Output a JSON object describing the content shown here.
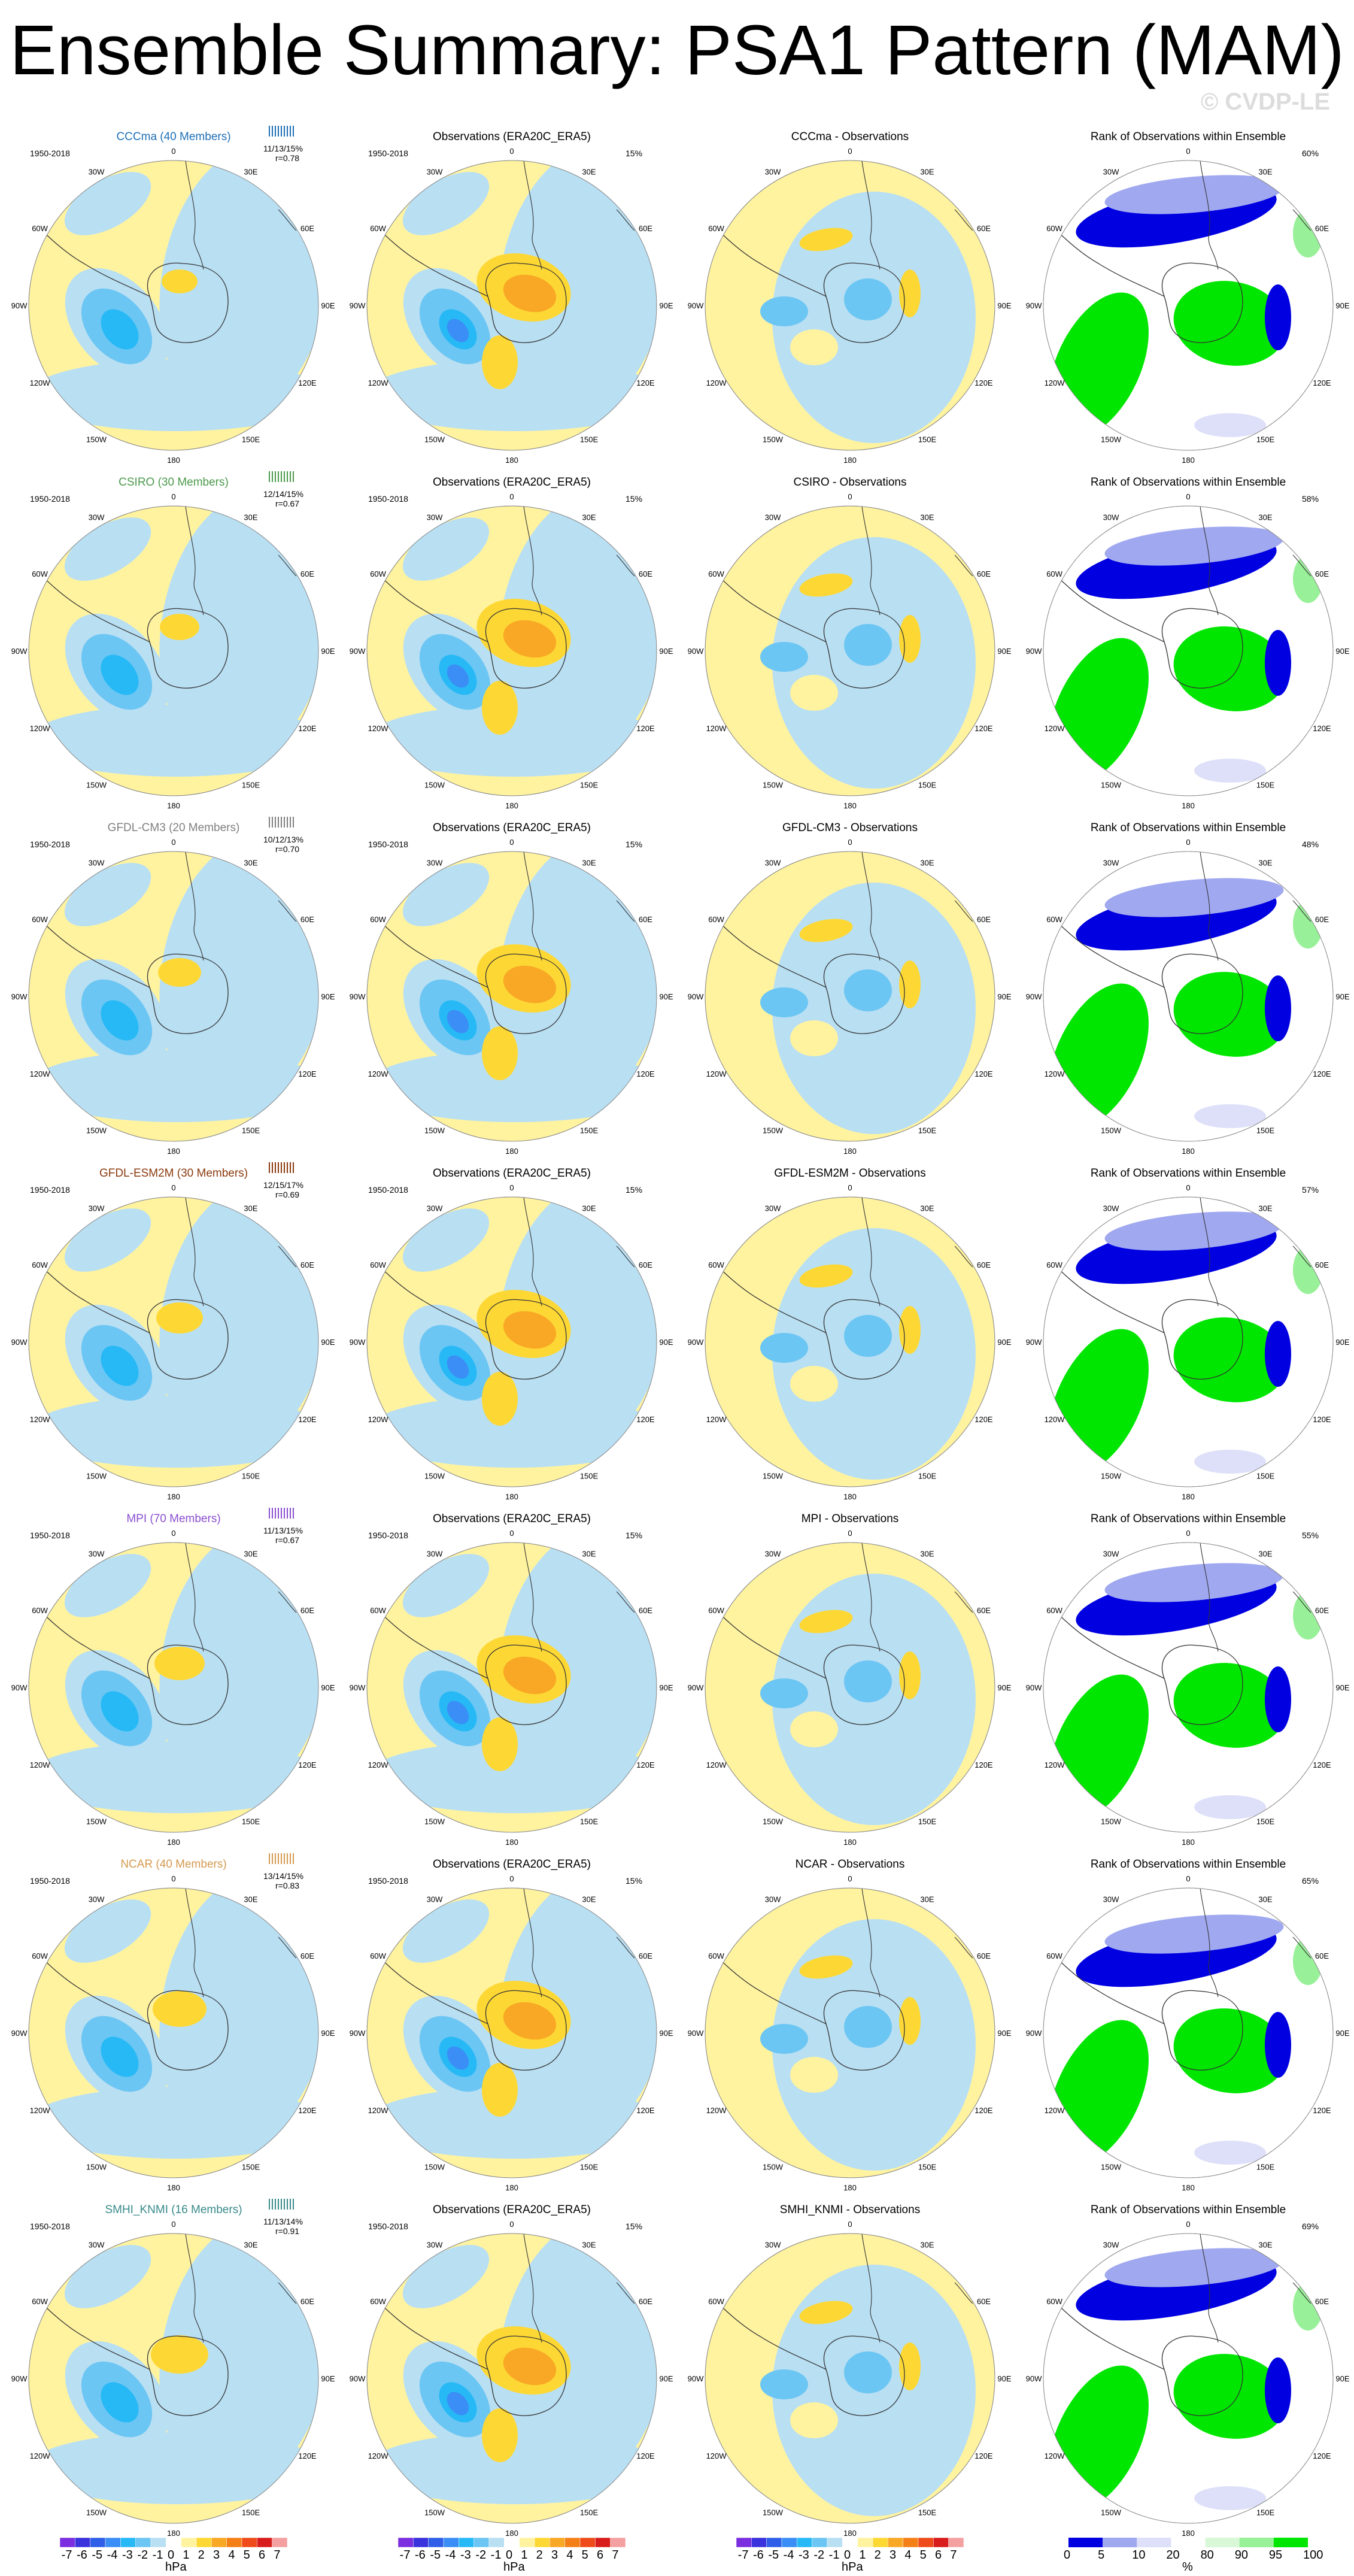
{
  "title": "Ensemble Summary: PSA1 Pattern (MAM)",
  "copyright": "© CVDP-LE",
  "period": "1950-2018",
  "obs_title": "Observations (ERA20C_ERA5)",
  "rank_title": "Rank of Observations within Ensemble",
  "obs_pct": "15%",
  "lon_labels": [
    "0",
    "30E",
    "60E",
    "90E",
    "120E",
    "150E",
    "180",
    "150W",
    "120W",
    "90W",
    "60W",
    "30W"
  ],
  "colors": {
    "c_-7": "#7a2ee0",
    "c_-6": "#3a32dc",
    "c_-5": "#2f5fe8",
    "c_-4": "#3b8ef5",
    "c_-3": "#27b9f5",
    "c_-2": "#6cc6f3",
    "c_-1": "#b9dff3",
    "c_1": "#fff3a0",
    "c_2": "#fdd835",
    "c_3": "#f9a825",
    "c_4": "#f57f17",
    "c_5": "#ef4b1a",
    "c_6": "#d81b1b",
    "c_7": "#f4a0a0",
    "rank_low": "#0000e0",
    "rank_mid": "#a0a8f0",
    "rank_light": "#dde0f8",
    "rank_high_light": "#d8f8d8",
    "rank_high_mid": "#98f098",
    "rank_high": "#00e600"
  },
  "models": [
    {
      "name": "CCCma (40 Members)",
      "color": "#1e6fb5",
      "stats": "11/13/15%",
      "r": "r=0.78",
      "diff_title": "CCCma - Observations",
      "rank_pct": "60%"
    },
    {
      "name": "CSIRO (30 Members)",
      "color": "#4c9a4c",
      "stats": "12/14/15%",
      "r": "r=0.67",
      "diff_title": "CSIRO - Observations",
      "rank_pct": "58%"
    },
    {
      "name": "GFDL-CM3 (20 Members)",
      "color": "#808080",
      "stats": "10/12/13%",
      "r": "r=0.70",
      "diff_title": "GFDL-CM3 - Observations",
      "rank_pct": "48%"
    },
    {
      "name": "GFDL-ESM2M (30 Members)",
      "color": "#8b3a0e",
      "stats": "12/15/17%",
      "r": "r=0.69",
      "diff_title": "GFDL-ESM2M - Observations",
      "rank_pct": "57%"
    },
    {
      "name": "MPI (70 Members)",
      "color": "#8a4fd0",
      "stats": "11/13/15%",
      "r": "r=0.67",
      "diff_title": "MPI - Observations",
      "rank_pct": "55%"
    },
    {
      "name": "NCAR (40 Members)",
      "color": "#d49a50",
      "stats": "13/14/15%",
      "r": "r=0.83",
      "diff_title": "NCAR - Observations",
      "rank_pct": "65%"
    },
    {
      "name": "SMHI_KNMI (16 Members)",
      "color": "#3a8a8a",
      "stats": "11/13/14%",
      "r": "r=0.91",
      "diff_title": "SMHI_KNMI - Observations",
      "rank_pct": "69%"
    }
  ],
  "colorbar_hpa": {
    "ticks": [
      "-7",
      "-6",
      "-5",
      "-4",
      "-3",
      "-2",
      "-1",
      "0",
      "1",
      "2",
      "3",
      "4",
      "5",
      "6",
      "7"
    ],
    "unit": "hPa"
  },
  "colorbar_rank": {
    "ticks": [
      "0",
      "5",
      "10",
      "20",
      "80",
      "90",
      "95",
      "100"
    ],
    "unit": "%"
  }
}
